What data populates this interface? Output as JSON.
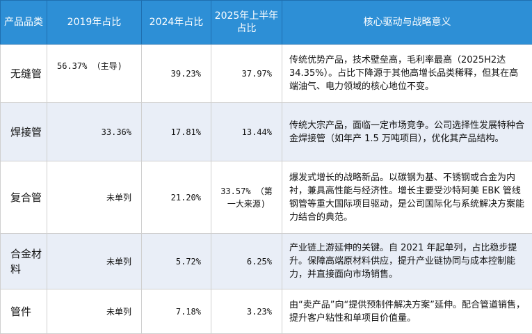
{
  "table": {
    "headers": [
      "产品品类",
      "2019年占比",
      "2024年占比",
      "2025年上半年占比",
      "核心驱动与战略意义"
    ],
    "rows": [
      {
        "category": "无缝管",
        "y2019": "56.37% （主导)",
        "y2024": "39.23%",
        "h1_2025": "37.97%",
        "desc": "传统优势产品，技术壁垒高，毛利率最高（2025H2达34.35%）。占比下降源于其他高增长品类稀释，但其在高端油气、电力领域的核心地位不变。"
      },
      {
        "category": "焊接管",
        "y2019": "33.36%",
        "y2024": "17.81%",
        "h1_2025": "13.44%",
        "desc": "传统大宗产品，面临一定市场竞争。公司选择性发展特种合金焊接管（如年产 1.5 万吨项目），优化其产品结构。"
      },
      {
        "category": "复合管",
        "y2019": "未单列",
        "y2024": "21.20%",
        "h1_2025": "33.57% （第一大来源)",
        "desc": "爆发式增长的战略新品。以碳钢为基、不锈钢或合金为内衬，兼具高性能与经济性。增长主要受沙特阿美 EBK 管线钢管等重大国际项目驱动，是公司国际化与系统解决方案能力结合的典范。"
      },
      {
        "category": "合金材料",
        "y2019": "未单列",
        "y2024": "5.72%",
        "h1_2025": "6.25%",
        "desc": "产业链上游延伸的关键。自 2021 年起单列，占比稳步提升。保障高端原材料供应，提升产业链协同与成本控制能力，并直接面向市场销售。"
      },
      {
        "category": "管件",
        "y2019": "未单列",
        "y2024": "7.18%",
        "h1_2025": "3.23%",
        "desc": "由“卖产品”向“提供预制件解决方案”延伸。配合管道销售，提升客户粘性和单项目价值量。"
      }
    ]
  },
  "colors": {
    "header_bg": "#2d8fd6",
    "header_text": "#ffffff",
    "row_alt_bg": "#e9eef7",
    "border": "#cfcfcf"
  }
}
